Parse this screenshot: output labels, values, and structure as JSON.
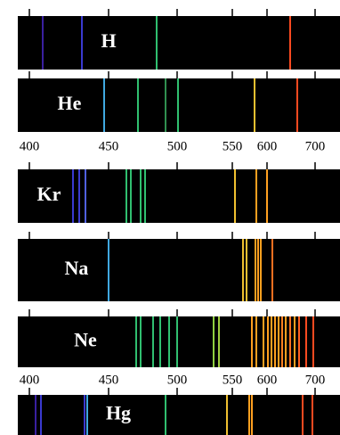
{
  "panels": [
    {
      "label": "H"
    },
    {
      "label": "He"
    },
    {
      "label": "Kr"
    },
    {
      "label": "Na"
    },
    {
      "label": "Ne"
    },
    {
      "label": "Hg"
    }
  ],
  "scales": [
    {
      "labels": [
        "400",
        "450",
        "500",
        "550",
        "600",
        "700"
      ]
    },
    {
      "labels": [
        "400",
        "450",
        "500",
        "550",
        "600",
        "700"
      ]
    }
  ]
}
